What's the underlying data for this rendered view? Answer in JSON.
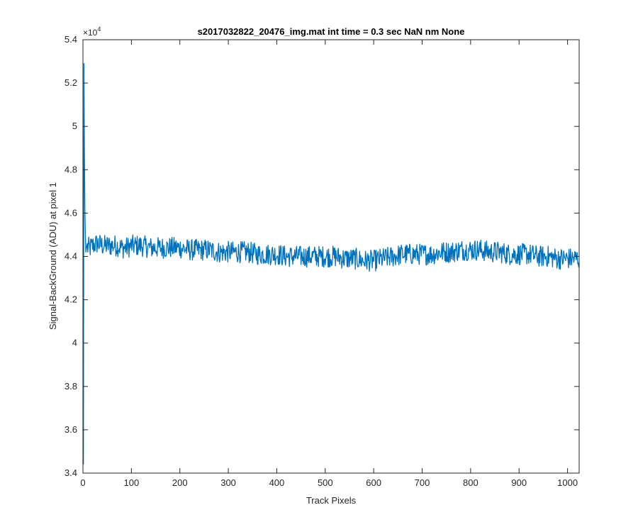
{
  "chart_data": {
    "type": "line",
    "title": "s2017032822_20476_img.mat int time = 0.3 sec  NaN nm None",
    "xlabel": "Track Pixels",
    "ylabel": "Signal-BackGround (ADU) at pixel 1",
    "y_exponent_label": "×10",
    "y_exponent": "4",
    "xlim": [
      0,
      1024
    ],
    "ylim": [
      3.4,
      5.4
    ],
    "y_scale_note": "values in units of 1e4",
    "xticks": [
      0,
      100,
      200,
      300,
      400,
      500,
      600,
      700,
      800,
      900,
      1000
    ],
    "xtick_labels": [
      "0",
      "100",
      "200",
      "300",
      "400",
      "500",
      "600",
      "700",
      "800",
      "900",
      "1000"
    ],
    "yticks": [
      3.4,
      3.6,
      3.8,
      4.0,
      4.2,
      4.4,
      4.6,
      4.8,
      5.0,
      5.2,
      5.4
    ],
    "ytick_labels": [
      "3.4",
      "3.6",
      "3.8",
      "4",
      "4.2",
      "4.4",
      "4.6",
      "4.8",
      "5",
      "5.2",
      "5.4"
    ],
    "grid": false,
    "line_color": "#0072BD",
    "series": [
      {
        "x": [
          1,
          2,
          3,
          4,
          5,
          6,
          8,
          10,
          15,
          20,
          30,
          40,
          50,
          60,
          70,
          80,
          90,
          100,
          120,
          140,
          160,
          180,
          200,
          220,
          240,
          260,
          280,
          300,
          320,
          340,
          360,
          380,
          400,
          420,
          440,
          460,
          480,
          500,
          520,
          540,
          560,
          580,
          600,
          620,
          640,
          660,
          680,
          700,
          720,
          740,
          760,
          780,
          800,
          820,
          840,
          860,
          880,
          900,
          920,
          940,
          960,
          980,
          1000,
          1024
        ],
        "y": [
          3.44,
          5.29,
          4.9,
          4.62,
          4.5,
          4.42,
          4.45,
          4.44,
          4.44,
          4.45,
          4.46,
          4.45,
          4.45,
          4.45,
          4.45,
          4.44,
          4.44,
          4.45,
          4.45,
          4.44,
          4.44,
          4.44,
          4.44,
          4.43,
          4.43,
          4.43,
          4.42,
          4.42,
          4.42,
          4.42,
          4.41,
          4.41,
          4.41,
          4.4,
          4.4,
          4.4,
          4.4,
          4.4,
          4.4,
          4.39,
          4.39,
          4.38,
          4.38,
          4.39,
          4.4,
          4.41,
          4.41,
          4.41,
          4.41,
          4.42,
          4.42,
          4.43,
          4.43,
          4.43,
          4.42,
          4.42,
          4.41,
          4.41,
          4.41,
          4.4,
          4.4,
          4.39,
          4.39,
          4.39
        ],
        "noise_amplitude": 0.05
      }
    ]
  }
}
